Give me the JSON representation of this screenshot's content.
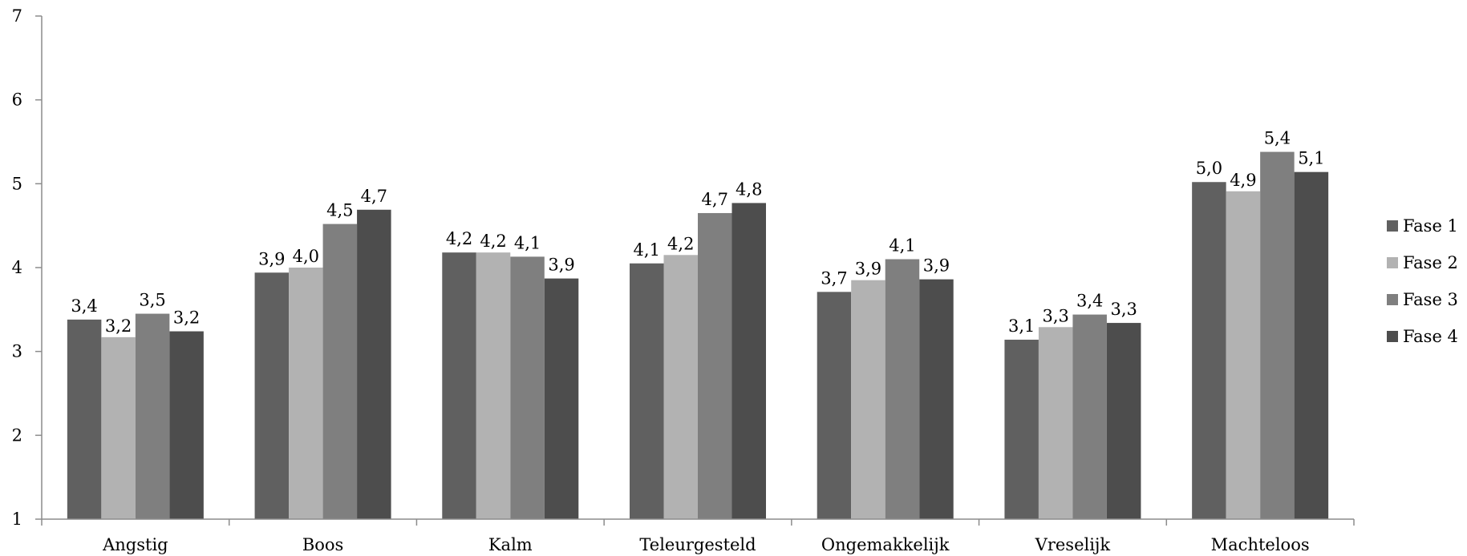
{
  "chart_data": {
    "type": "bar",
    "title": "",
    "xlabel": "",
    "ylabel": "",
    "ylim": [
      1,
      7
    ],
    "yticks": [
      "1",
      "2",
      "3",
      "4",
      "5",
      "6",
      "7"
    ],
    "grid": false,
    "legend_position": "right",
    "categories": [
      "Angstig",
      "Boos",
      "Kalm",
      "Teleurgesteld",
      "Ongemakkelijk",
      "Vreselijk",
      "Machteloos"
    ],
    "series": [
      {
        "name": "Fase 1",
        "color": "#606060",
        "values": [
          3.38,
          3.94,
          4.18,
          4.05,
          3.71,
          3.14,
          5.02
        ],
        "labels": [
          "3,4",
          "3,9",
          "4,2",
          "4,1",
          "3,7",
          "3,1",
          "5,0"
        ]
      },
      {
        "name": "Fase 2",
        "color": "#b2b2b2",
        "values": [
          3.17,
          4.0,
          4.18,
          4.15,
          3.85,
          3.29,
          4.91
        ],
        "labels": [
          "3,2",
          "4,0",
          "4,2",
          "4,2",
          "3,9",
          "3,3",
          "4,9"
        ]
      },
      {
        "name": "Fase 3",
        "color": "#7f7f7f",
        "values": [
          3.45,
          4.52,
          4.13,
          4.65,
          4.1,
          3.44,
          5.38
        ],
        "labels": [
          "3,5",
          "4,5",
          "4,1",
          "4,7",
          "4,1",
          "3,4",
          "5,4"
        ]
      },
      {
        "name": "Fase 4",
        "color": "#4d4d4d",
        "values": [
          3.24,
          4.69,
          3.87,
          4.77,
          3.86,
          3.34,
          5.14
        ],
        "labels": [
          "3,2",
          "4,7",
          "3,9",
          "4,8",
          "3,9",
          "3,3",
          "5,1"
        ]
      }
    ]
  }
}
